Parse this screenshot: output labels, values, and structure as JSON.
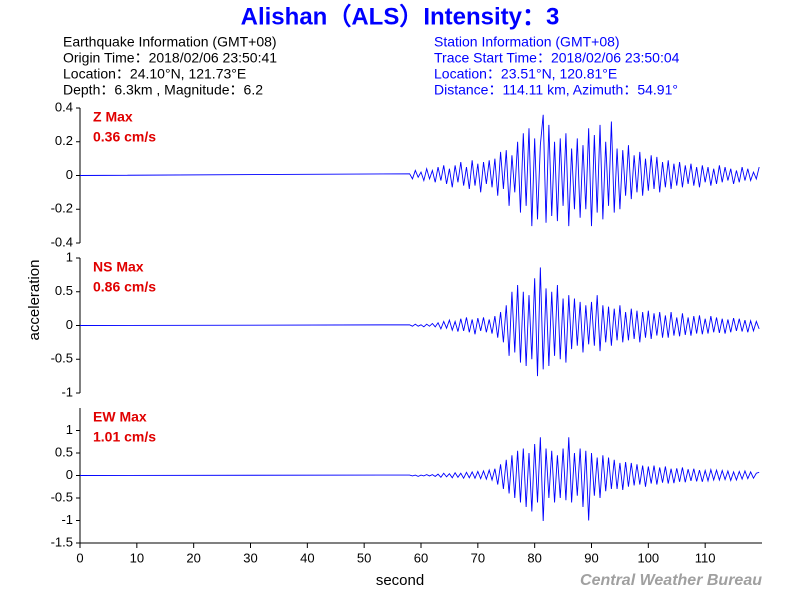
{
  "chart_data": {
    "type": "line",
    "title": "Alishan（ALS）Intensity：3",
    "earthquake_info": [
      "Earthquake Information (GMT+08)",
      "Origin Time：2018/02/06 23:50:41",
      "Location：24.10°N, 121.73°E",
      "Depth：6.3km , Magnitude：6.2"
    ],
    "station_info": [
      "Station Information (GMT+08)",
      "Trace Start Time：2018/02/06 23:50:04",
      "Location：23.51°N, 120.81°E",
      "Distance：114.11 km, Azimuth：54.91°"
    ],
    "xlabel": "second",
    "ylabel": "acceleration",
    "watermark": "Central Weather Bureau",
    "xlim": [
      0,
      120
    ],
    "xticks": [
      0,
      10,
      20,
      30,
      40,
      50,
      60,
      70,
      80,
      90,
      100,
      110
    ],
    "x": [
      0,
      58,
      58.5,
      59,
      59.5,
      60,
      60.5,
      61,
      61.5,
      62,
      62.5,
      63,
      63.5,
      64,
      64.5,
      65,
      65.5,
      66,
      66.5,
      67,
      67.5,
      68,
      68.5,
      69,
      69.5,
      70,
      70.5,
      71,
      71.5,
      72,
      72.5,
      73,
      73.5,
      74,
      74.5,
      75,
      75.5,
      76,
      76.5,
      77,
      77.5,
      78,
      78.5,
      79,
      79.5,
      80,
      80.5,
      81,
      81.5,
      82,
      82.5,
      83,
      83.5,
      84,
      84.5,
      85,
      85.5,
      86,
      86.5,
      87,
      87.5,
      88,
      88.5,
      89,
      89.5,
      90,
      90.5,
      91,
      91.5,
      92,
      92.5,
      93,
      93.5,
      94,
      94.5,
      95,
      95.5,
      96,
      96.5,
      97,
      97.5,
      98,
      98.5,
      99,
      99.5,
      100,
      100.5,
      101,
      101.5,
      102,
      102.5,
      103,
      103.5,
      104,
      104.5,
      105,
      105.5,
      106,
      106.5,
      107,
      107.5,
      108,
      108.5,
      109,
      109.5,
      110,
      110.5,
      111,
      111.5,
      112,
      112.5,
      113,
      113.5,
      114,
      114.5,
      115,
      115.5,
      116,
      116.5,
      117,
      117.5,
      118,
      118.5,
      119,
      119.5
    ],
    "panels": [
      {
        "name": "Z Max",
        "peak": "0.36 cm/s",
        "label_color": "#e00000",
        "color": "#0000ff",
        "ylim": [
          -0.4,
          0.4
        ],
        "yticks": [
          -0.4,
          -0.2,
          0,
          0.2,
          0.4
        ],
        "values": [
          0,
          0.01,
          -0.02,
          0.03,
          -0.01,
          0.02,
          -0.03,
          0.04,
          -0.02,
          0.03,
          -0.04,
          0.05,
          -0.03,
          0.06,
          -0.05,
          0.04,
          -0.07,
          0.06,
          -0.04,
          0.08,
          -0.06,
          0.05,
          -0.08,
          0.09,
          -0.06,
          0.07,
          -0.1,
          0.08,
          -0.05,
          0.09,
          -0.07,
          0.1,
          -0.12,
          0.14,
          -0.08,
          0.15,
          -0.18,
          0.12,
          -0.1,
          0.2,
          -0.22,
          0.25,
          -0.18,
          0.28,
          -0.3,
          0.22,
          -0.26,
          0.18,
          0.36,
          -0.28,
          0.3,
          -0.24,
          0.2,
          -0.27,
          0.22,
          -0.18,
          0.25,
          -0.3,
          0.16,
          -0.2,
          0.22,
          -0.25,
          0.18,
          -0.2,
          0.28,
          -0.3,
          0.24,
          -0.22,
          0.3,
          -0.26,
          0.2,
          -0.18,
          0.32,
          -0.22,
          0.16,
          -0.2,
          0.15,
          -0.12,
          0.18,
          -0.14,
          0.12,
          -0.1,
          0.14,
          -0.12,
          0.1,
          -0.09,
          0.12,
          -0.08,
          0.11,
          -0.1,
          0.08,
          -0.07,
          0.09,
          -0.08,
          0.07,
          -0.06,
          0.08,
          -0.07,
          0.06,
          -0.05,
          0.07,
          -0.06,
          0.05,
          -0.07,
          0.06,
          -0.04,
          0.05,
          -0.06,
          0.04,
          -0.05,
          0.06,
          -0.04,
          0.05,
          -0.03,
          0.04,
          -0.05,
          0.03,
          -0.04,
          0.05,
          -0.03,
          0.04,
          -0.03,
          0.02,
          -0.02,
          0.05
        ]
      },
      {
        "name": "NS Max",
        "peak": "0.86 cm/s",
        "label_color": "#e00000",
        "color": "#0000ff",
        "ylim": [
          -1,
          1
        ],
        "yticks": [
          -1,
          -0.5,
          0,
          0.5,
          1
        ],
        "values": [
          0,
          0.01,
          -0.01,
          0.02,
          -0.01,
          0.01,
          -0.02,
          0.02,
          -0.01,
          0.03,
          -0.02,
          0.04,
          -0.05,
          0.06,
          -0.04,
          0.08,
          -0.07,
          0.06,
          -0.09,
          0.1,
          -0.08,
          0.12,
          -0.1,
          0.09,
          -0.13,
          0.11,
          -0.08,
          0.12,
          -0.1,
          0.09,
          -0.12,
          0.14,
          -0.18,
          0.2,
          -0.25,
          0.3,
          -0.45,
          0.5,
          -0.4,
          0.6,
          -0.55,
          0.5,
          -0.6,
          0.45,
          -0.5,
          0.7,
          -0.75,
          0.86,
          -0.65,
          0.55,
          -0.6,
          0.5,
          -0.45,
          0.6,
          -0.5,
          0.4,
          -0.55,
          0.45,
          -0.35,
          0.4,
          -0.3,
          0.35,
          -0.4,
          0.3,
          -0.28,
          0.35,
          -0.3,
          0.45,
          -0.38,
          0.3,
          -0.25,
          0.28,
          -0.3,
          0.25,
          -0.22,
          0.3,
          -0.25,
          0.2,
          -0.22,
          0.25,
          -0.2,
          0.22,
          -0.25,
          0.2,
          -0.18,
          0.22,
          -0.2,
          0.18,
          -0.15,
          0.2,
          -0.18,
          0.15,
          -0.18,
          0.2,
          -0.15,
          0.12,
          -0.16,
          0.18,
          -0.14,
          0.12,
          -0.15,
          0.14,
          -0.12,
          0.15,
          -0.13,
          0.1,
          -0.12,
          0.14,
          -0.1,
          0.12,
          -0.11,
          0.1,
          -0.12,
          0.09,
          -0.1,
          0.11,
          -0.08,
          0.1,
          -0.09,
          0.08,
          -0.1,
          0.07,
          -0.08,
          0.06,
          -0.05
        ]
      },
      {
        "name": "EW Max",
        "peak": "1.01 cm/s",
        "label_color": "#e00000",
        "color": "#0000ff",
        "ylim": [
          -1.5,
          1.5
        ],
        "yticks": [
          -1.5,
          -1,
          -0.5,
          0,
          0.5,
          1
        ],
        "values": [
          0,
          0.01,
          -0.01,
          0.01,
          -0.02,
          0.01,
          -0.01,
          0.02,
          -0.01,
          0.02,
          -0.02,
          0.03,
          -0.04,
          0.05,
          -0.03,
          0.04,
          -0.05,
          0.06,
          -0.04,
          0.05,
          -0.06,
          0.07,
          -0.05,
          0.08,
          -0.06,
          0.09,
          -0.07,
          0.1,
          -0.08,
          0.12,
          -0.1,
          0.15,
          -0.2,
          0.25,
          -0.3,
          0.35,
          -0.4,
          0.45,
          -0.5,
          0.55,
          -0.6,
          0.6,
          -0.7,
          0.5,
          -0.8,
          0.7,
          -0.6,
          0.85,
          -1.01,
          0.6,
          -0.5,
          0.55,
          -0.6,
          0.45,
          -0.5,
          0.6,
          -0.55,
          0.85,
          -0.6,
          0.5,
          -0.45,
          0.6,
          -0.7,
          0.55,
          -1.0,
          0.5,
          -0.45,
          0.4,
          -0.5,
          0.45,
          -0.35,
          0.4,
          -0.3,
          0.35,
          -0.3,
          0.28,
          -0.32,
          0.3,
          -0.25,
          0.28,
          -0.22,
          0.25,
          -0.2,
          0.22,
          -0.25,
          0.2,
          -0.18,
          0.22,
          -0.2,
          0.18,
          -0.16,
          0.2,
          -0.18,
          0.15,
          -0.17,
          0.16,
          -0.14,
          0.18,
          -0.15,
          0.14,
          -0.12,
          0.15,
          -0.13,
          0.12,
          -0.14,
          0.11,
          -0.12,
          0.13,
          -0.1,
          0.12,
          -0.1,
          0.11,
          -0.09,
          0.1,
          -0.11,
          0.08,
          -0.1,
          0.09,
          -0.08,
          0.1,
          -0.07,
          0.08,
          -0.06,
          0.05,
          0.07
        ]
      }
    ]
  }
}
